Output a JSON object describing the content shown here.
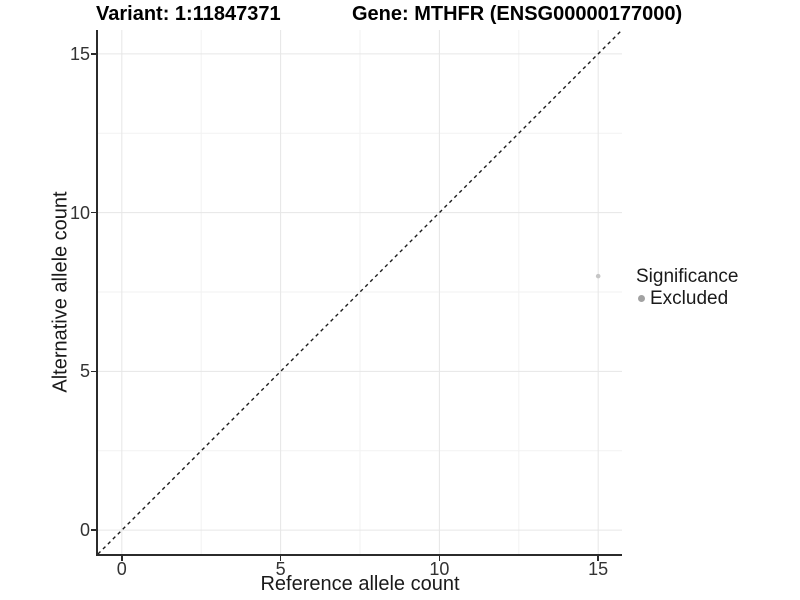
{
  "titles": {
    "left": "Variant: 1:11847371",
    "right": "Gene: MTHFR (ENSG00000177000)"
  },
  "axes": {
    "x": {
      "label": "Reference allele count"
    },
    "y": {
      "label": "Alternative allele count"
    }
  },
  "legend": {
    "title": "Significance",
    "items": [
      {
        "label": "Excluded",
        "marker_color": "#a2a2a2"
      }
    ]
  },
  "chart_data": {
    "type": "scatter",
    "title": "Variant: 1:11847371 | Gene: MTHFR (ENSG00000177000)",
    "xlabel": "Reference allele count",
    "ylabel": "Alternative allele count",
    "xlim": [
      -0.75,
      15.75
    ],
    "ylim": [
      -0.75,
      15.75
    ],
    "x_ticks": [
      0,
      5,
      10,
      15
    ],
    "y_ticks": [
      0,
      5,
      10,
      15
    ],
    "x_minor_ticks": [
      2.5,
      7.5,
      12.5
    ],
    "y_minor_ticks": [
      2.5,
      7.5,
      12.5
    ],
    "grid": "major+minor",
    "legend_position": "right",
    "series": [
      {
        "name": "Excluded",
        "type": "scatter",
        "color": "#c6c6c6",
        "point_radius": 2.3,
        "points": [
          [
            15,
            8
          ]
        ]
      }
    ],
    "reference_line": {
      "kind": "identity y=x",
      "style": "dashed",
      "color": "#1c1c1c",
      "from": [
        -0.75,
        -0.75
      ],
      "to": [
        15.75,
        15.75
      ]
    }
  },
  "colors": {
    "background": "#ffffff",
    "axis_line": "#2b2b2b",
    "tick_label": "#333333",
    "grid_major": "#e6e6e6",
    "grid_minor": "#f2f2f2",
    "title_text": "#000000",
    "point": "#c6c6c6",
    "legend_marker": "#a2a2a2"
  }
}
